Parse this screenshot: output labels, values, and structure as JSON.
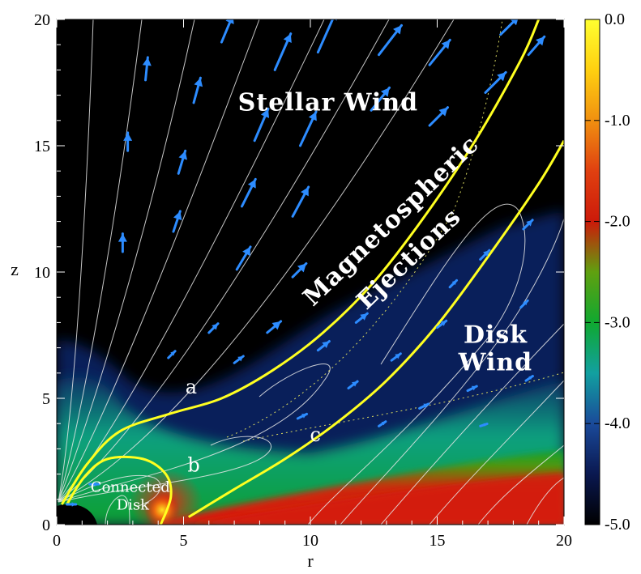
{
  "chart_data": {
    "type": "heatmap",
    "xlabel": "r",
    "ylabel": "z",
    "xlim": [
      0,
      20
    ],
    "ylim": [
      0,
      20
    ],
    "x_ticks": [
      0,
      5,
      10,
      15,
      20
    ],
    "y_ticks": [
      0,
      5,
      10,
      15,
      20
    ],
    "colorbar": {
      "range": [
        -5.0,
        0.0
      ],
      "ticks": [
        "0.0",
        "-1.0",
        "-2.0",
        "-3.0",
        "-4.0",
        "-5.0"
      ],
      "tick_values": [
        0.0,
        -1.0,
        -2.0,
        -3.0,
        -4.0,
        -5.0
      ],
      "colors": [
        {
          "value": -5.0,
          "color": "#000000"
        },
        {
          "value": -4.5,
          "color": "#0a1850"
        },
        {
          "value": -4.0,
          "color": "#1a4a9a"
        },
        {
          "value": -3.5,
          "color": "#12a0a0"
        },
        {
          "value": -3.0,
          "color": "#10a830"
        },
        {
          "value": -2.5,
          "color": "#60a010"
        },
        {
          "value": -2.0,
          "color": "#cc1a0a"
        },
        {
          "value": -1.5,
          "color": "#e04010"
        },
        {
          "value": -1.0,
          "color": "#f09010"
        },
        {
          "value": -0.5,
          "color": "#ffd010"
        },
        {
          "value": 0.0,
          "color": "#ffff30"
        }
      ]
    },
    "annotations": [
      {
        "text": "Stellar Wind",
        "x": 10.7,
        "z": 16.4
      },
      {
        "text": "Magnetospheric",
        "x": 13.4,
        "z": 11.8,
        "rotation": -44
      },
      {
        "text": "Ejections",
        "x": 14.1,
        "z": 10.3,
        "rotation": -44
      },
      {
        "text": "Disk",
        "x": 17.3,
        "z": 7.2
      },
      {
        "text": "Wind",
        "x": 17.3,
        "z": 6.1
      },
      {
        "text": "a",
        "x": 5.3,
        "z": 5.2
      },
      {
        "text": "b",
        "x": 5.4,
        "z": 2.1
      },
      {
        "text": "c",
        "x": 10.2,
        "z": 3.3
      },
      {
        "text": "Connected",
        "x": 2.9,
        "z": 1.3
      },
      {
        "text": "Disk",
        "x": 3.0,
        "z": 0.6
      }
    ],
    "yellow_field_lines": [
      {
        "name": "a",
        "points": [
          [
            0.2,
            0.8
          ],
          [
            1.2,
            2.4
          ],
          [
            2.5,
            3.7
          ],
          [
            4.5,
            4.4
          ],
          [
            6.5,
            5.0
          ],
          [
            8.5,
            6.1
          ],
          [
            10.5,
            7.6
          ],
          [
            12.5,
            9.6
          ],
          [
            14.5,
            12.2
          ],
          [
            16.5,
            15.2
          ],
          [
            18.3,
            18.4
          ],
          [
            19.0,
            20.0
          ]
        ]
      },
      {
        "name": "b",
        "points": [
          [
            0.4,
            0.8
          ],
          [
            1.1,
            1.9
          ],
          [
            2.0,
            2.6
          ],
          [
            3.4,
            2.6
          ],
          [
            4.3,
            2.0
          ],
          [
            4.5,
            1.1
          ],
          [
            4.1,
            0.0
          ]
        ]
      },
      {
        "name": "c",
        "points": [
          [
            5.2,
            0.3
          ],
          [
            7.0,
            1.4
          ],
          [
            9.0,
            2.6
          ],
          [
            11.0,
            4.0
          ],
          [
            13.0,
            5.7
          ],
          [
            15.0,
            7.9
          ],
          [
            17.0,
            10.6
          ],
          [
            19.0,
            13.5
          ],
          [
            20.0,
            15.2
          ]
        ]
      }
    ],
    "vectors": [
      {
        "x": 2.6,
        "z": 10.8,
        "dx": 0.0,
        "dz": 0.8
      },
      {
        "x": 2.8,
        "z": 14.8,
        "dx": 0.0,
        "dz": 0.8
      },
      {
        "x": 3.5,
        "z": 17.6,
        "dx": 0.1,
        "dz": 1.0
      },
      {
        "x": 4.6,
        "z": 11.6,
        "dx": 0.3,
        "dz": 0.9
      },
      {
        "x": 4.8,
        "z": 13.9,
        "dx": 0.3,
        "dz": 1.0
      },
      {
        "x": 5.4,
        "z": 16.7,
        "dx": 0.3,
        "dz": 1.1
      },
      {
        "x": 6.5,
        "z": 19.1,
        "dx": 0.5,
        "dz": 1.2
      },
      {
        "x": 7.1,
        "z": 10.1,
        "dx": 0.6,
        "dz": 1.0
      },
      {
        "x": 7.3,
        "z": 12.6,
        "dx": 0.6,
        "dz": 1.2
      },
      {
        "x": 7.8,
        "z": 15.2,
        "dx": 0.6,
        "dz": 1.4
      },
      {
        "x": 8.6,
        "z": 18.0,
        "dx": 0.7,
        "dz": 1.6
      },
      {
        "x": 9.3,
        "z": 12.2,
        "dx": 0.7,
        "dz": 1.3
      },
      {
        "x": 9.6,
        "z": 15.0,
        "dx": 0.7,
        "dz": 1.5
      },
      {
        "x": 10.3,
        "z": 18.7,
        "dx": 0.8,
        "dz": 1.8
      },
      {
        "x": 12.7,
        "z": 18.6,
        "dx": 1.0,
        "dz": 1.3
      },
      {
        "x": 12.4,
        "z": 16.4,
        "dx": 0.8,
        "dz": 1.0
      },
      {
        "x": 14.7,
        "z": 18.2,
        "dx": 0.9,
        "dz": 1.1
      },
      {
        "x": 14.7,
        "z": 15.8,
        "dx": 0.8,
        "dz": 0.8
      },
      {
        "x": 16.9,
        "z": 17.1,
        "dx": 0.9,
        "dz": 0.9
      },
      {
        "x": 17.5,
        "z": 19.4,
        "dx": 0.8,
        "dz": 0.8
      },
      {
        "x": 18.6,
        "z": 18.6,
        "dx": 0.7,
        "dz": 0.8
      },
      {
        "x": 6.0,
        "z": 7.6,
        "dx": 0.4,
        "dz": 0.4
      },
      {
        "x": 8.3,
        "z": 7.6,
        "dx": 0.6,
        "dz": 0.5
      },
      {
        "x": 9.3,
        "z": 9.8,
        "dx": 0.6,
        "dz": 0.6
      },
      {
        "x": 4.4,
        "z": 6.6,
        "dx": 0.3,
        "dz": 0.3
      },
      {
        "x": 7.0,
        "z": 6.4,
        "dx": 0.4,
        "dz": 0.3
      },
      {
        "x": 10.3,
        "z": 6.9,
        "dx": 0.5,
        "dz": 0.4
      },
      {
        "x": 11.8,
        "z": 8.0,
        "dx": 0.5,
        "dz": 0.4
      },
      {
        "x": 11.5,
        "z": 5.4,
        "dx": 0.4,
        "dz": 0.3
      },
      {
        "x": 13.2,
        "z": 6.5,
        "dx": 0.4,
        "dz": 0.3
      },
      {
        "x": 15.0,
        "z": 7.8,
        "dx": 0.4,
        "dz": 0.3
      },
      {
        "x": 14.3,
        "z": 4.6,
        "dx": 0.4,
        "dz": 0.2
      },
      {
        "x": 16.2,
        "z": 5.3,
        "dx": 0.4,
        "dz": 0.2
      },
      {
        "x": 18.5,
        "z": 5.7,
        "dx": 0.3,
        "dz": 0.2
      },
      {
        "x": 18.3,
        "z": 8.6,
        "dx": 0.3,
        "dz": 0.3
      },
      {
        "x": 18.4,
        "z": 11.7,
        "dx": 0.4,
        "dz": 0.4
      },
      {
        "x": 16.7,
        "z": 10.5,
        "dx": 0.4,
        "dz": 0.4
      },
      {
        "x": 15.5,
        "z": 9.4,
        "dx": 0.3,
        "dz": 0.3
      },
      {
        "x": 9.5,
        "z": 4.2,
        "dx": 0.4,
        "dz": 0.2
      },
      {
        "x": 12.7,
        "z": 3.9,
        "dx": 0.3,
        "dz": 0.2
      },
      {
        "x": 16.7,
        "z": 3.9,
        "dx": 0.3,
        "dz": 0.1
      },
      {
        "x": 0.4,
        "z": 0.8,
        "dx": 0.4,
        "dz": 0.0
      },
      {
        "x": 1.3,
        "z": 1.6,
        "dx": 0.4,
        "dz": 0.0
      }
    ]
  }
}
